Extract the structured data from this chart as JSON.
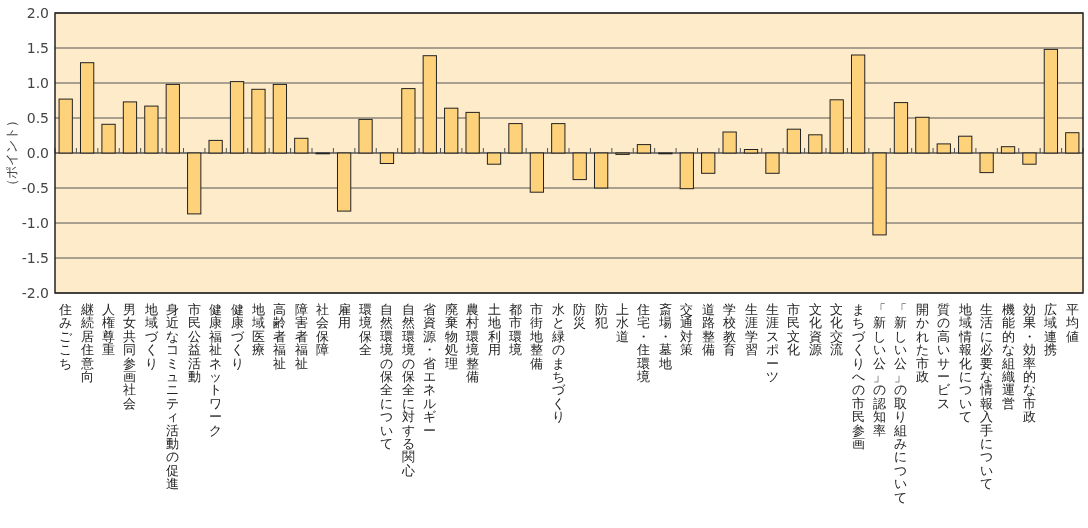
{
  "chart_data": {
    "type": "bar",
    "ylabel": "（ポイント）",
    "categories": [
      "住みごこち",
      "継続居住意向",
      "人権尊重",
      "男女共同参画社会",
      "地域づくり",
      "身近なコミュニティ活動の促進",
      "市民公益活動",
      "健康福祉ネットワーク",
      "健康づくり",
      "地域医療",
      "高齢者福祉",
      "障害者福祉",
      "社会保障",
      "雇用",
      "環境保全",
      "自然環境の保全について",
      "自然環境の保全に対する関心",
      "省資源・省エネルギー",
      "廃棄物処理",
      "農村環境整備",
      "土地利用",
      "都市環境",
      "市街地整備",
      "水と緑のまちづくり",
      "防災",
      "防犯",
      "上水道",
      "住宅・住環境",
      "斎場・墓地",
      "交通対策",
      "道路整備",
      "学校教育",
      "生涯学習",
      "生涯スポーツ",
      "市民文化",
      "文化資源",
      "文化交流",
      "まちづくりへの市民参画",
      "「新しい公」の認知率",
      "「新しい公」の取り組みについて",
      "開かれた市政",
      "質の高いサービス",
      "地域情報化について",
      "生活に必要な情報入手について",
      "機能的な組織運営",
      "効果・効率的な市政",
      "広域連携",
      "平均値"
    ],
    "values": [
      0.77,
      1.29,
      0.41,
      0.73,
      0.67,
      0.98,
      -0.87,
      0.18,
      1.02,
      0.91,
      0.98,
      0.21,
      0.0,
      -0.83,
      0.48,
      -0.15,
      0.92,
      1.39,
      0.64,
      0.58,
      -0.16,
      0.42,
      -0.56,
      0.42,
      -0.38,
      -0.5,
      -0.02,
      0.12,
      -0.01,
      -0.51,
      -0.29,
      0.3,
      0.05,
      -0.29,
      0.34,
      0.26,
      0.76,
      1.4,
      -1.17,
      0.72,
      0.51,
      0.13,
      0.24,
      -0.28,
      0.09,
      -0.16,
      1.48,
      0.29
    ],
    "color": "#fed27a",
    "ylim": [
      -2,
      2
    ],
    "yticks": [
      {
        "value": 2,
        "label": "2.0"
      },
      {
        "value": 1.5,
        "label": "1.5"
      },
      {
        "value": 1,
        "label": "1.0"
      },
      {
        "value": 0.5,
        "label": "0.5"
      },
      {
        "value": 0,
        "label": "0.0"
      },
      {
        "value": -0.5,
        "label": "-0.5"
      },
      {
        "value": -1,
        "label": "-1.0"
      },
      {
        "value": -1.5,
        "label": "-1.5"
      },
      {
        "value": -2,
        "label": "-2.0"
      }
    ],
    "grid": "y",
    "legend": false
  }
}
